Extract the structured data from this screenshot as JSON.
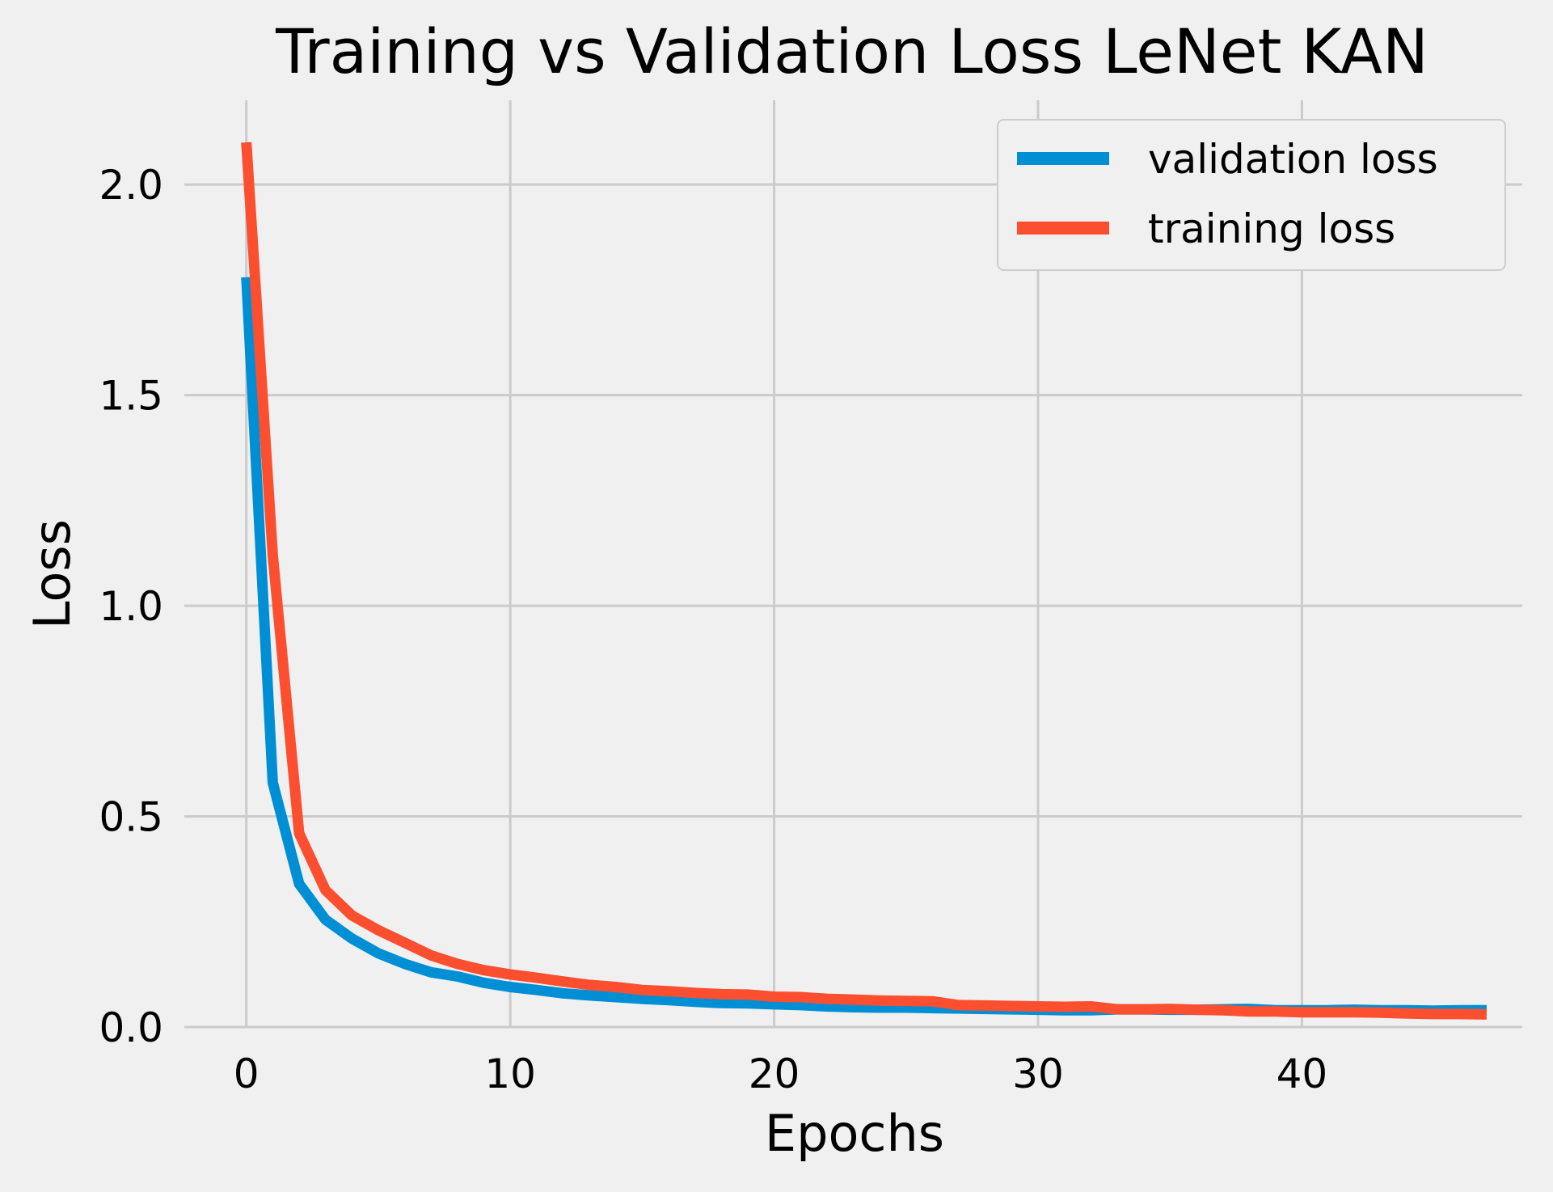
{
  "chart_data": {
    "type": "line",
    "title": "Training vs Validation Loss LeNet KAN",
    "xlabel": "Epochs",
    "ylabel": "Loss",
    "xlim": [
      -2.35,
      48.35
    ],
    "ylim": [
      -0.0,
      2.2
    ],
    "xticks": [
      0,
      10,
      20,
      30,
      40
    ],
    "xtick_labels": [
      "0",
      "10",
      "20",
      "30",
      "40"
    ],
    "yticks": [
      0.0,
      0.5,
      1.0,
      1.5,
      2.0
    ],
    "ytick_labels": [
      "0.0",
      "0.5",
      "1.0",
      "1.5",
      "2.0"
    ],
    "grid": true,
    "legend_position": "top-right",
    "background": "#f0f0f0",
    "grid_color": "#cbcbcb",
    "x": [
      0,
      1,
      2,
      3,
      4,
      5,
      6,
      7,
      8,
      9,
      10,
      11,
      12,
      13,
      14,
      15,
      16,
      17,
      18,
      19,
      20,
      21,
      22,
      23,
      24,
      25,
      26,
      27,
      28,
      29,
      30,
      31,
      32,
      33,
      34,
      35,
      36,
      37,
      38,
      39,
      40,
      41,
      42,
      43,
      44,
      45,
      46,
      47
    ],
    "series": [
      {
        "name": "validation loss",
        "color": "#008fd5",
        "values": [
          1.78,
          0.58,
          0.34,
          0.255,
          0.21,
          0.175,
          0.15,
          0.13,
          0.12,
          0.105,
          0.095,
          0.088,
          0.08,
          0.075,
          0.071,
          0.067,
          0.064,
          0.06,
          0.057,
          0.056,
          0.054,
          0.052,
          0.049,
          0.047,
          0.046,
          0.046,
          0.045,
          0.044,
          0.043,
          0.042,
          0.041,
          0.04,
          0.04,
          0.042,
          0.042,
          0.041,
          0.041,
          0.042,
          0.043,
          0.04,
          0.04,
          0.04,
          0.041,
          0.04,
          0.04,
          0.039,
          0.04,
          0.04
        ]
      },
      {
        "name": "training loss",
        "color": "#fc4f30",
        "values": [
          2.1,
          1.12,
          0.46,
          0.325,
          0.265,
          0.23,
          0.2,
          0.17,
          0.15,
          0.135,
          0.125,
          0.117,
          0.108,
          0.1,
          0.095,
          0.088,
          0.085,
          0.081,
          0.078,
          0.077,
          0.072,
          0.071,
          0.067,
          0.065,
          0.063,
          0.062,
          0.061,
          0.052,
          0.051,
          0.05,
          0.049,
          0.048,
          0.049,
          0.042,
          0.042,
          0.043,
          0.041,
          0.04,
          0.037,
          0.037,
          0.035,
          0.035,
          0.035,
          0.034,
          0.032,
          0.031,
          0.031,
          0.03
        ]
      }
    ]
  }
}
